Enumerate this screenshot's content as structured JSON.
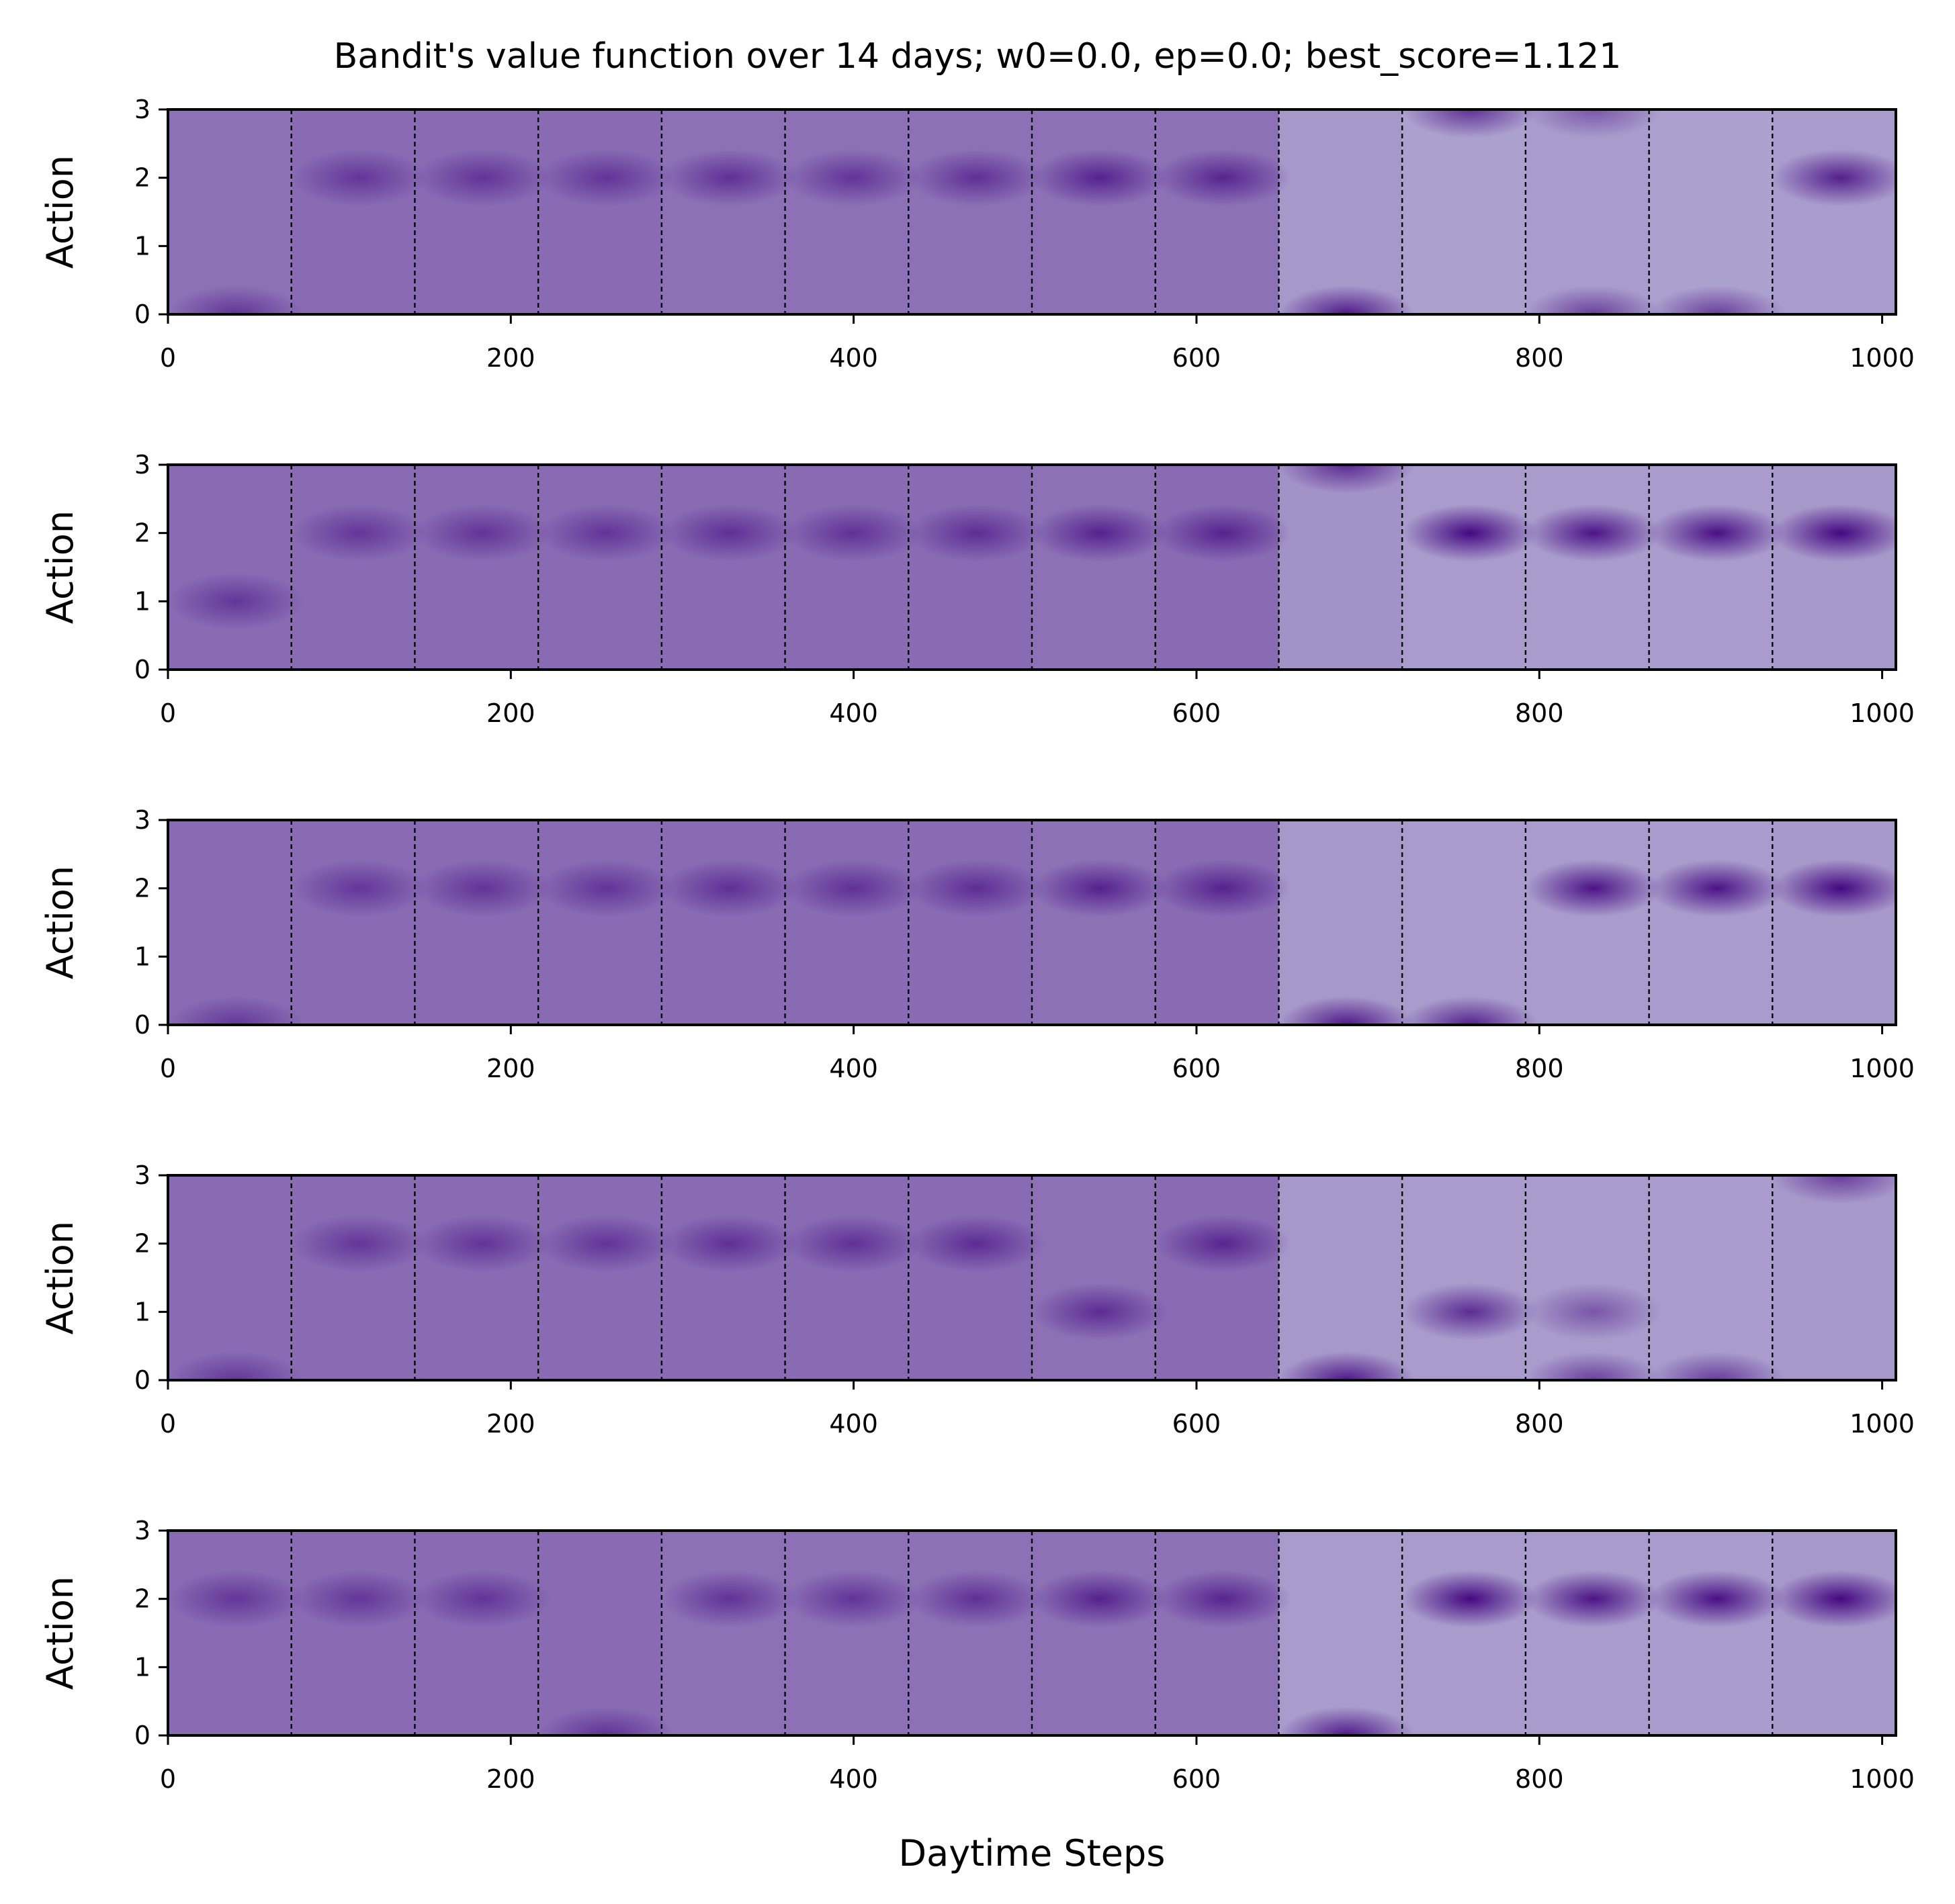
{
  "chart_data": {
    "type": "heatmap",
    "title": "Bandit's value function over 14 days; w0=0.0, ep=0.0; best_score=1.121",
    "xlabel": "Daytime Steps",
    "ylabel": "Action",
    "xlim": [
      0,
      1008
    ],
    "ylim": [
      0,
      3
    ],
    "x_ticks": [
      0,
      200,
      400,
      600,
      800,
      1000
    ],
    "y_ticks": [
      0,
      1,
      2,
      3
    ],
    "day_boundaries": [
      72,
      144,
      216,
      288,
      360,
      432,
      504,
      576,
      648,
      720,
      792,
      864,
      936
    ],
    "color_range": [
      "#c4c3e0",
      "#3f007d"
    ],
    "panels": [
      {
        "base_levels": [
          0.42,
          0.45,
          0.45,
          0.45,
          0.42,
          0.42,
          0.42,
          0.42,
          0.42,
          0.22,
          0.18,
          0.2,
          0.18,
          0.2
        ],
        "blobs": [
          {
            "day": 0,
            "action": 0,
            "intensity": 0.55
          },
          {
            "day": 1,
            "action": 2,
            "intensity": 0.5
          },
          {
            "day": 2,
            "action": 2,
            "intensity": 0.52
          },
          {
            "day": 3,
            "action": 2,
            "intensity": 0.52
          },
          {
            "day": 4,
            "action": 2,
            "intensity": 0.58
          },
          {
            "day": 5,
            "action": 2,
            "intensity": 0.55
          },
          {
            "day": 6,
            "action": 2,
            "intensity": 0.58
          },
          {
            "day": 7,
            "action": 2,
            "intensity": 0.7
          },
          {
            "day": 8,
            "action": 2,
            "intensity": 0.68
          },
          {
            "day": 9,
            "action": 0,
            "intensity": 0.85
          },
          {
            "day": 10,
            "action": 3,
            "intensity": 0.7
          },
          {
            "day": 11,
            "action": 0,
            "intensity": 0.6
          },
          {
            "day": 11,
            "action": 3,
            "intensity": 0.45
          },
          {
            "day": 12,
            "action": 0,
            "intensity": 0.62
          },
          {
            "day": 13,
            "action": 2,
            "intensity": 0.8
          }
        ]
      },
      {
        "base_levels": [
          0.45,
          0.45,
          0.45,
          0.45,
          0.45,
          0.45,
          0.45,
          0.42,
          0.45,
          0.25,
          0.2,
          0.2,
          0.2,
          0.22
        ],
        "blobs": [
          {
            "day": 0,
            "action": 1,
            "intensity": 0.5
          },
          {
            "day": 1,
            "action": 2,
            "intensity": 0.5
          },
          {
            "day": 2,
            "action": 2,
            "intensity": 0.52
          },
          {
            "day": 3,
            "action": 2,
            "intensity": 0.52
          },
          {
            "day": 4,
            "action": 2,
            "intensity": 0.56
          },
          {
            "day": 5,
            "action": 2,
            "intensity": 0.55
          },
          {
            "day": 6,
            "action": 2,
            "intensity": 0.58
          },
          {
            "day": 7,
            "action": 2,
            "intensity": 0.7
          },
          {
            "day": 8,
            "action": 2,
            "intensity": 0.68
          },
          {
            "day": 9,
            "action": 3,
            "intensity": 0.72
          },
          {
            "day": 10,
            "action": 2,
            "intensity": 0.95
          },
          {
            "day": 11,
            "action": 2,
            "intensity": 0.88
          },
          {
            "day": 12,
            "action": 2,
            "intensity": 0.9
          },
          {
            "day": 13,
            "action": 2,
            "intensity": 0.95
          }
        ]
      },
      {
        "base_levels": [
          0.45,
          0.45,
          0.45,
          0.45,
          0.45,
          0.45,
          0.45,
          0.42,
          0.45,
          0.22,
          0.2,
          0.2,
          0.2,
          0.22
        ],
        "blobs": [
          {
            "day": 0,
            "action": 0,
            "intensity": 0.5
          },
          {
            "day": 1,
            "action": 2,
            "intensity": 0.5
          },
          {
            "day": 2,
            "action": 2,
            "intensity": 0.52
          },
          {
            "day": 3,
            "action": 2,
            "intensity": 0.52
          },
          {
            "day": 4,
            "action": 2,
            "intensity": 0.56
          },
          {
            "day": 5,
            "action": 2,
            "intensity": 0.55
          },
          {
            "day": 6,
            "action": 2,
            "intensity": 0.58
          },
          {
            "day": 7,
            "action": 2,
            "intensity": 0.7
          },
          {
            "day": 8,
            "action": 2,
            "intensity": 0.68
          },
          {
            "day": 9,
            "action": 0,
            "intensity": 0.85
          },
          {
            "day": 10,
            "action": 0,
            "intensity": 0.8
          },
          {
            "day": 11,
            "action": 2,
            "intensity": 0.88
          },
          {
            "day": 12,
            "action": 2,
            "intensity": 0.88
          },
          {
            "day": 13,
            "action": 2,
            "intensity": 0.95
          }
        ]
      },
      {
        "base_levels": [
          0.45,
          0.45,
          0.45,
          0.45,
          0.45,
          0.45,
          0.45,
          0.42,
          0.45,
          0.22,
          0.2,
          0.2,
          0.2,
          0.22
        ],
        "blobs": [
          {
            "day": 0,
            "action": 0,
            "intensity": 0.5
          },
          {
            "day": 1,
            "action": 2,
            "intensity": 0.5
          },
          {
            "day": 2,
            "action": 2,
            "intensity": 0.52
          },
          {
            "day": 3,
            "action": 2,
            "intensity": 0.52
          },
          {
            "day": 4,
            "action": 2,
            "intensity": 0.56
          },
          {
            "day": 5,
            "action": 2,
            "intensity": 0.55
          },
          {
            "day": 6,
            "action": 2,
            "intensity": 0.6
          },
          {
            "day": 7,
            "action": 1,
            "intensity": 0.62
          },
          {
            "day": 8,
            "action": 2,
            "intensity": 0.65
          },
          {
            "day": 9,
            "action": 0,
            "intensity": 0.85
          },
          {
            "day": 10,
            "action": 1,
            "intensity": 0.72
          },
          {
            "day": 11,
            "action": 0,
            "intensity": 0.6
          },
          {
            "day": 11,
            "action": 1,
            "intensity": 0.45
          },
          {
            "day": 12,
            "action": 0,
            "intensity": 0.62
          },
          {
            "day": 13,
            "action": 3,
            "intensity": 0.62
          }
        ]
      },
      {
        "base_levels": [
          0.45,
          0.45,
          0.45,
          0.45,
          0.42,
          0.42,
          0.42,
          0.42,
          0.42,
          0.2,
          0.2,
          0.2,
          0.2,
          0.22
        ],
        "blobs": [
          {
            "day": 0,
            "action": 2,
            "intensity": 0.5
          },
          {
            "day": 1,
            "action": 2,
            "intensity": 0.5
          },
          {
            "day": 2,
            "action": 2,
            "intensity": 0.52
          },
          {
            "day": 3,
            "action": 0,
            "intensity": 0.55
          },
          {
            "day": 4,
            "action": 2,
            "intensity": 0.56
          },
          {
            "day": 5,
            "action": 2,
            "intensity": 0.55
          },
          {
            "day": 6,
            "action": 2,
            "intensity": 0.58
          },
          {
            "day": 7,
            "action": 2,
            "intensity": 0.7
          },
          {
            "day": 8,
            "action": 2,
            "intensity": 0.68
          },
          {
            "day": 9,
            "action": 0,
            "intensity": 0.85
          },
          {
            "day": 10,
            "action": 2,
            "intensity": 0.95
          },
          {
            "day": 11,
            "action": 2,
            "intensity": 0.88
          },
          {
            "day": 12,
            "action": 2,
            "intensity": 0.9
          },
          {
            "day": 13,
            "action": 2,
            "intensity": 0.95
          }
        ]
      }
    ]
  }
}
